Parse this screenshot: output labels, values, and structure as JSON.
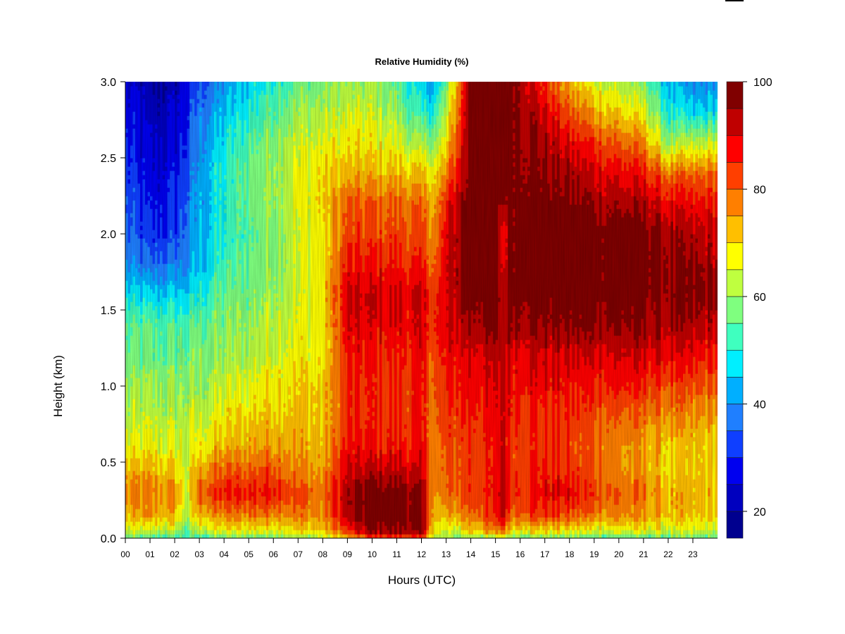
{
  "chart_data": {
    "type": "heatmap",
    "title": "Relative Humidity (%)",
    "xlabel": "Hours (UTC)",
    "ylabel": "Height (km)",
    "x_ticks": [
      "00",
      "01",
      "02",
      "03",
      "04",
      "05",
      "06",
      "07",
      "08",
      "09",
      "10",
      "11",
      "12",
      "13",
      "14",
      "15",
      "16",
      "17",
      "18",
      "19",
      "20",
      "21",
      "22",
      "23"
    ],
    "xlim": [
      0,
      24
    ],
    "y_ticks": [
      "0.0",
      "0.5",
      "1.0",
      "1.5",
      "2.0",
      "2.5",
      "3.0"
    ],
    "ylim": [
      0,
      3.0
    ],
    "colorbar": {
      "ticks": [
        "20",
        "40",
        "60",
        "80",
        "100"
      ],
      "range": [
        15,
        100
      ],
      "levels": [
        15,
        20,
        25,
        30,
        35,
        40,
        45,
        50,
        55,
        60,
        65,
        70,
        75,
        80,
        85,
        90,
        95,
        100
      ],
      "colors": [
        "#00008f",
        "#0000bf",
        "#0000ef",
        "#0f3fff",
        "#1f7fff",
        "#00afff",
        "#00efff",
        "#3fffbf",
        "#7fff7f",
        "#bfff3f",
        "#ffff00",
        "#ffbf00",
        "#ff7f00",
        "#ff3f00",
        "#ff0000",
        "#bf0000",
        "#800000"
      ]
    },
    "heights_km": [
      0.0,
      0.05,
      0.15,
      0.3,
      0.45,
      0.6,
      0.8,
      1.0,
      1.2,
      1.4,
      1.6,
      1.8,
      2.0,
      2.2,
      2.4,
      2.6,
      2.8,
      3.0
    ],
    "hours_utc": [
      0,
      1,
      2,
      2.5,
      3,
      4,
      5,
      6,
      7,
      8,
      9,
      10,
      11,
      12,
      12.6,
      13,
      13.5,
      14,
      15,
      15.3,
      15.6,
      16,
      17,
      18,
      19,
      20,
      21,
      22,
      23,
      23.9
    ],
    "rh_percent": [
      [
        53,
        53,
        53,
        52,
        53,
        55,
        56,
        58,
        60,
        62,
        70,
        80,
        82,
        78,
        62,
        60,
        58,
        60,
        58,
        68,
        58,
        58,
        58,
        56,
        54,
        54,
        54,
        55,
        56,
        56
      ],
      [
        63,
        64,
        63,
        55,
        63,
        66,
        67,
        68,
        69,
        70,
        84,
        96,
        96,
        94,
        65,
        63,
        65,
        72,
        75,
        80,
        70,
        70,
        70,
        68,
        66,
        66,
        66,
        64,
        64,
        64
      ],
      [
        72,
        73,
        72,
        62,
        73,
        76,
        78,
        78,
        78,
        76,
        92,
        99,
        99,
        96,
        70,
        72,
        75,
        80,
        82,
        95,
        80,
        82,
        83,
        80,
        78,
        76,
        75,
        72,
        70,
        70
      ],
      [
        76,
        77,
        76,
        64,
        80,
        86,
        86,
        88,
        82,
        78,
        93,
        99,
        99,
        95,
        73,
        78,
        80,
        84,
        85,
        96,
        84,
        86,
        88,
        88,
        84,
        80,
        78,
        72,
        72,
        72
      ],
      [
        72,
        72,
        70,
        65,
        74,
        80,
        80,
        82,
        76,
        74,
        90,
        92,
        92,
        88,
        75,
        80,
        82,
        84,
        84,
        94,
        84,
        84,
        86,
        84,
        80,
        76,
        74,
        70,
        70,
        70
      ],
      [
        66,
        67,
        66,
        64,
        68,
        72,
        74,
        76,
        74,
        72,
        86,
        86,
        86,
        86,
        76,
        80,
        82,
        84,
        84,
        92,
        84,
        84,
        84,
        82,
        80,
        76,
        74,
        70,
        70,
        70
      ],
      [
        62,
        63,
        62,
        62,
        64,
        68,
        70,
        72,
        72,
        70,
        84,
        84,
        84,
        84,
        78,
        82,
        84,
        86,
        86,
        92,
        86,
        86,
        84,
        84,
        82,
        80,
        78,
        76,
        74,
        74
      ],
      [
        60,
        60,
        60,
        60,
        60,
        64,
        66,
        70,
        70,
        70,
        84,
        84,
        84,
        84,
        80,
        84,
        86,
        88,
        88,
        92,
        88,
        88,
        88,
        86,
        86,
        86,
        84,
        82,
        80,
        80
      ],
      [
        56,
        56,
        56,
        56,
        58,
        60,
        62,
        66,
        68,
        68,
        86,
        86,
        86,
        86,
        82,
        86,
        88,
        90,
        90,
        92,
        90,
        90,
        90,
        90,
        90,
        90,
        90,
        88,
        86,
        86
      ],
      [
        54,
        54,
        54,
        54,
        56,
        58,
        60,
        64,
        66,
        68,
        88,
        88,
        88,
        88,
        84,
        88,
        92,
        95,
        96,
        94,
        96,
        96,
        96,
        96,
        96,
        96,
        95,
        93,
        92,
        92
      ],
      [
        48,
        46,
        46,
        46,
        50,
        56,
        58,
        62,
        64,
        68,
        90,
        90,
        90,
        90,
        84,
        88,
        95,
        98,
        99,
        93,
        99,
        99,
        99,
        99,
        99,
        98,
        98,
        96,
        96,
        96
      ],
      [
        40,
        36,
        38,
        40,
        45,
        52,
        56,
        60,
        64,
        68,
        86,
        86,
        86,
        84,
        80,
        88,
        95,
        99,
        99,
        88,
        99,
        99,
        99,
        99,
        99,
        99,
        99,
        96,
        94,
        94
      ],
      [
        36,
        30,
        32,
        38,
        44,
        50,
        54,
        60,
        64,
        68,
        82,
        82,
        82,
        80,
        76,
        88,
        95,
        99,
        99,
        84,
        99,
        99,
        99,
        99,
        99,
        99,
        98,
        94,
        92,
        92
      ],
      [
        34,
        28,
        30,
        36,
        42,
        50,
        56,
        62,
        66,
        70,
        80,
        80,
        80,
        78,
        75,
        85,
        93,
        99,
        99,
        95,
        99,
        99,
        99,
        97,
        95,
        94,
        93,
        88,
        86,
        86
      ],
      [
        32,
        26,
        28,
        34,
        42,
        50,
        56,
        62,
        66,
        70,
        72,
        72,
        72,
        70,
        68,
        76,
        88,
        99,
        99,
        99,
        99,
        98,
        96,
        94,
        90,
        88,
        86,
        78,
        78,
        80
      ],
      [
        30,
        24,
        26,
        32,
        40,
        48,
        54,
        60,
        64,
        66,
        68,
        68,
        66,
        60,
        60,
        68,
        84,
        99,
        99,
        99,
        99,
        97,
        94,
        88,
        84,
        80,
        76,
        60,
        62,
        64
      ],
      [
        28,
        22,
        24,
        30,
        38,
        44,
        50,
        56,
        60,
        62,
        64,
        64,
        60,
        50,
        52,
        62,
        80,
        99,
        99,
        99,
        99,
        96,
        90,
        80,
        74,
        70,
        66,
        50,
        46,
        48
      ],
      [
        26,
        20,
        22,
        28,
        34,
        40,
        46,
        52,
        56,
        58,
        60,
        60,
        56,
        44,
        44,
        56,
        76,
        99,
        99,
        99,
        99,
        95,
        84,
        72,
        66,
        62,
        58,
        44,
        38,
        40
      ]
    ]
  }
}
